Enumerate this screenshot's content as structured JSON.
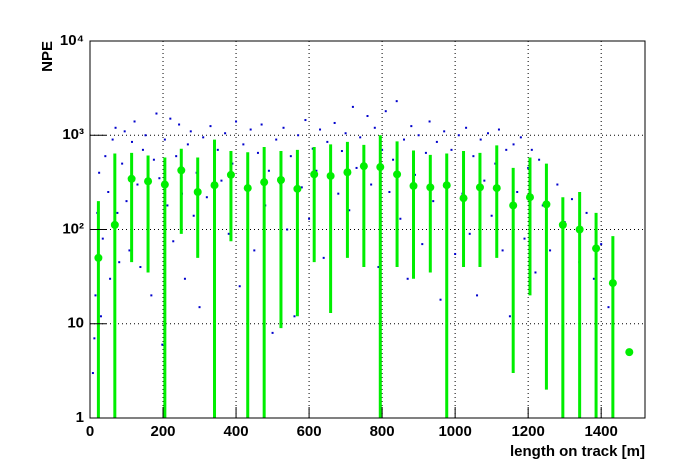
{
  "chart_data": {
    "type": "scatter",
    "x_label": "length on track [m]",
    "y_label": "NPE",
    "xlim": [
      0,
      1520
    ],
    "ylim": [
      1,
      10000
    ],
    "log_y": true,
    "grid": true,
    "xticks": [
      0,
      200,
      400,
      600,
      800,
      1000,
      1200,
      1400
    ],
    "yticks": [
      1,
      10,
      {
        "value": 100,
        "label": "10²"
      },
      {
        "value": 1000,
        "label": "10³"
      },
      {
        "value": 10000,
        "label": "10⁴"
      }
    ],
    "series": [
      {
        "color": "#0000cc",
        "marker": "dot",
        "x": [
          8,
          12,
          15,
          18,
          20,
          25,
          30,
          35,
          42,
          50,
          55,
          62,
          70,
          75,
          80,
          88,
          95,
          100,
          108,
          115,
          122,
          130,
          138,
          145,
          152,
          160,
          168,
          175,
          182,
          190,
          198,
          205,
          212,
          220,
          228,
          236,
          244,
          252,
          260,
          268,
          276,
          284,
          292,
          300,
          310,
          320,
          330,
          340,
          350,
          360,
          370,
          380,
          390,
          400,
          410,
          420,
          430,
          440,
          450,
          460,
          470,
          480,
          490,
          500,
          510,
          520,
          530,
          540,
          550,
          560,
          570,
          580,
          590,
          600,
          610,
          620,
          630,
          640,
          650,
          660,
          670,
          680,
          690,
          700,
          710,
          720,
          730,
          740,
          750,
          760,
          770,
          780,
          790,
          800,
          810,
          820,
          830,
          840,
          850,
          860,
          870,
          880,
          890,
          900,
          910,
          920,
          930,
          940,
          950,
          960,
          970,
          980,
          990,
          1000,
          1010,
          1020,
          1030,
          1040,
          1050,
          1060,
          1070,
          1080,
          1090,
          1100,
          1110,
          1120,
          1130,
          1140,
          1150,
          1160,
          1170,
          1180,
          1190,
          1200,
          1210,
          1220,
          1230,
          1240,
          1250,
          1260,
          1280,
          1300,
          1320,
          1340,
          1360,
          1380,
          1400,
          1420
        ],
        "values": [
          3,
          7,
          20,
          50,
          150,
          400,
          12,
          80,
          600,
          250,
          30,
          900,
          1200,
          150,
          45,
          500,
          1100,
          200,
          60,
          850,
          1400,
          300,
          40,
          700,
          1000,
          120,
          20,
          550,
          1700,
          350,
          6,
          900,
          180,
          1500,
          75,
          600,
          1300,
          240,
          30,
          800,
          1100,
          140,
          400,
          15,
          950,
          220,
          1250,
          55,
          700,
          330,
          1050,
          90,
          500,
          1400,
          25,
          800,
          260,
          1150,
          60,
          650,
          1300,
          180,
          420,
          8,
          900,
          310,
          1200,
          100,
          600,
          12,
          1000,
          280,
          1450,
          130,
          720,
          420,
          1150,
          50,
          850,
          20,
          1350,
          240,
          680,
          1050,
          160,
          2000,
          450,
          950,
          80,
          1600,
          300,
          1200,
          40,
          700,
          1800,
          250,
          550,
          2300,
          130,
          900,
          30,
          1250,
          380,
          1000,
          70,
          650,
          1400,
          200,
          850,
          18,
          1100,
          310,
          700,
          55,
          1000,
          240,
          1200,
          90,
          600,
          20,
          900,
          330,
          1050,
          140,
          500,
          1150,
          60,
          700,
          12,
          800,
          250,
          950,
          80,
          450,
          700,
          35,
          550,
          180,
          420,
          60,
          300,
          120,
          210,
          45,
          150,
          30,
          70,
          15
        ]
      },
      {
        "color": "#00ee00",
        "marker": "profile",
        "x": [
          23,
          68,
          114,
          159,
          205,
          250,
          295,
          341,
          386,
          432,
          477,
          523,
          568,
          614,
          659,
          705,
          750,
          795,
          841,
          886,
          932,
          977,
          1023,
          1068,
          1114,
          1159,
          1205,
          1250,
          1295,
          1341,
          1386,
          1432,
          1477
        ],
        "values": [
          50,
          112,
          345,
          325,
          300,
          425,
          250,
          295,
          380,
          275,
          318,
          335,
          270,
          385,
          370,
          405,
          470,
          460,
          385,
          290,
          280,
          295,
          215,
          280,
          275,
          180,
          220,
          185,
          112,
          100,
          63,
          27,
          5
        ],
        "error_low": [
          1,
          1,
          45,
          35,
          1,
          90,
          50,
          1,
          75,
          1,
          1,
          9,
          12,
          45,
          13,
          50,
          40,
          1,
          40,
          30,
          35,
          1,
          40,
          40,
          50,
          3,
          20,
          2,
          1,
          1,
          1,
          1,
          4.8
        ],
        "error_high": [
          200,
          640,
          650,
          610,
          580,
          720,
          580,
          900,
          680,
          660,
          750,
          680,
          700,
          750,
          800,
          850,
          790,
          1000,
          860,
          690,
          620,
          640,
          680,
          650,
          780,
          450,
          580,
          500,
          220,
          250,
          150,
          85,
          5.2
        ]
      }
    ]
  }
}
